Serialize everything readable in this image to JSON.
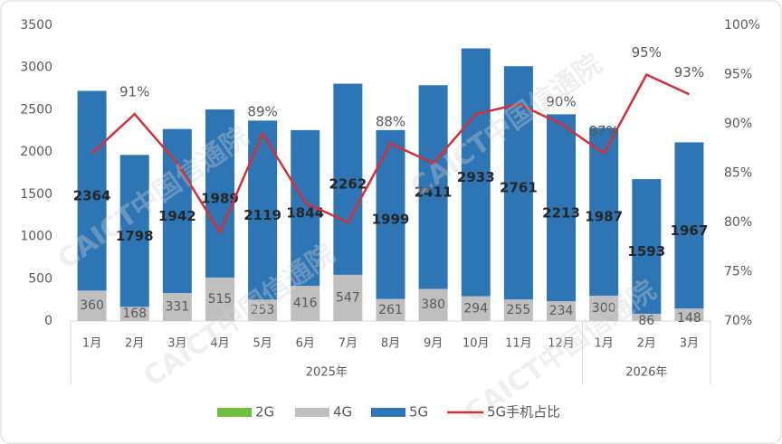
{
  "chart_data": {
    "type": "bar",
    "stacked": true,
    "categories": [
      "1月",
      "2月",
      "3月",
      "4月",
      "5月",
      "6月",
      "7月",
      "8月",
      "9月",
      "10月",
      "11月",
      "12月",
      "1月",
      "2月",
      "3月"
    ],
    "x_groups": [
      "2025年",
      "2026年"
    ],
    "watermark": "CAICT中国信通院",
    "series": [
      {
        "name": "2G",
        "color": "#70c040",
        "values": [
          0,
          0,
          0,
          0,
          0,
          0,
          0,
          0,
          0,
          0,
          0,
          0,
          0,
          0,
          0
        ]
      },
      {
        "name": "4G",
        "color": "#bfbfbf",
        "values": [
          360,
          168,
          331,
          515,
          253,
          416,
          547,
          261,
          380,
          294,
          255,
          234,
          300,
          86,
          148
        ]
      },
      {
        "name": "5G",
        "color": "#2e75b6",
        "values": [
          2364,
          1798,
          1942,
          1989,
          2119,
          1844,
          2262,
          1999,
          2411,
          2933,
          2761,
          2213,
          1987,
          1593,
          1967
        ]
      },
      {
        "name": "5G手机占比",
        "type": "line",
        "axis": "y2",
        "color": "#d62f35",
        "values": [
          87,
          91,
          86,
          79,
          89,
          82,
          80,
          88,
          86,
          91,
          92,
          90,
          87,
          95,
          93
        ],
        "value_labels": [
          null,
          "91%",
          null,
          null,
          "89%",
          null,
          null,
          "88%",
          null,
          null,
          null,
          "90%",
          "87%",
          "95%",
          "93%"
        ]
      }
    ],
    "ylim": [
      0,
      3500
    ],
    "yticks": [
      0,
      500,
      1000,
      1500,
      2000,
      2500,
      3000,
      3500
    ],
    "y2lim": [
      70,
      100
    ],
    "y2ticks": [
      {
        "value": 70,
        "label": "70%"
      },
      {
        "value": 75,
        "label": "75%"
      },
      {
        "value": 80,
        "label": "80%"
      },
      {
        "value": 85,
        "label": "85%"
      },
      {
        "value": 90,
        "label": "90%"
      },
      {
        "value": 95,
        "label": "95%"
      },
      {
        "value": 100,
        "label": "100%"
      }
    ],
    "grid": false,
    "legend": "bottom"
  }
}
